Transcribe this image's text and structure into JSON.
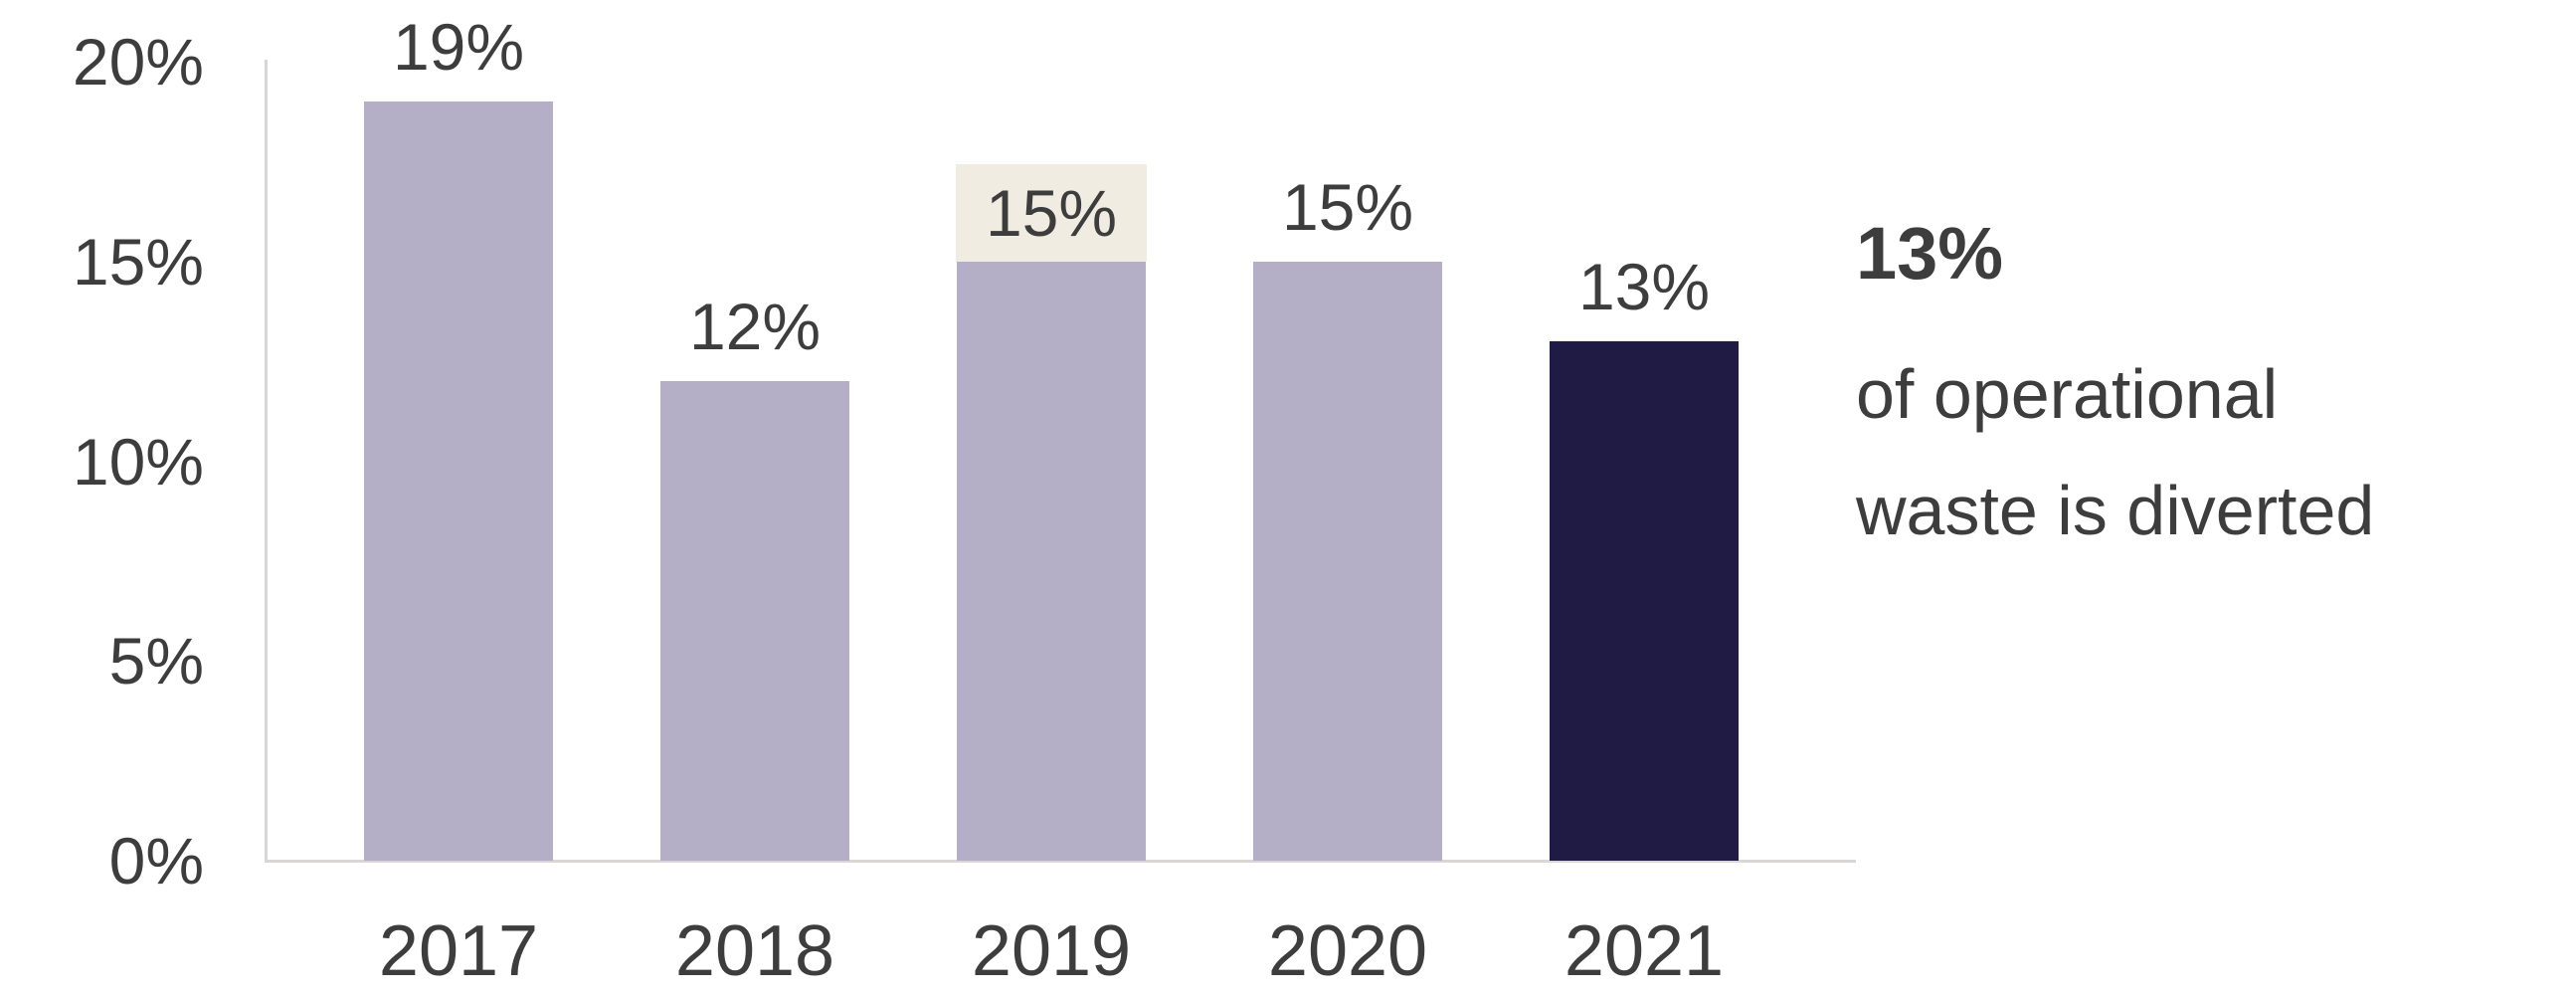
{
  "chart_data": {
    "type": "bar",
    "categories": [
      "2017",
      "2018",
      "2019",
      "2020",
      "2021"
    ],
    "values": [
      19,
      12,
      15,
      15,
      13
    ],
    "value_labels": [
      "19%",
      "12%",
      "15%",
      "15%",
      "13%"
    ],
    "highlighted_label_index": 2,
    "highlighted_bar_index": 4,
    "title": "",
    "xlabel": "",
    "ylabel": "",
    "ylim": [
      0,
      20
    ],
    "yticks": [
      0,
      5,
      10,
      15,
      20
    ],
    "ytick_labels": [
      "0%",
      "5%",
      "10%",
      "15%",
      "20%"
    ],
    "grid": false,
    "legend": "none",
    "colors": {
      "bar": "#b4aec6",
      "bar_highlight": "#201b45",
      "label_highlight_bg": "#f0ece1",
      "text": "#3d3d3d",
      "axis": "#d8d7d5"
    }
  },
  "annotation": {
    "value": "13%",
    "line1": "of operational",
    "line2": "waste is diverted"
  }
}
